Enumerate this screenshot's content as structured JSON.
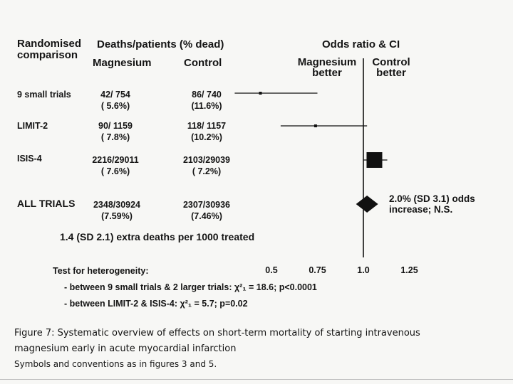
{
  "header": {
    "col_comparison": "Randomised comparison",
    "col_deaths": "Deaths/patients (% dead)",
    "col_magnesium": "Magnesium",
    "col_control": "Control",
    "col_or": "Odds ratio & CI",
    "favour_left": "Magnesium better",
    "favour_right": "Control better"
  },
  "rows": [
    {
      "name": "9 small trials",
      "mg": "42/ 754",
      "mg_pct": "( 5.6%)",
      "ctl": "86/ 740",
      "ctl_pct": "(11.6%)"
    },
    {
      "name": "LIMIT-2",
      "mg": "90/ 1159",
      "mg_pct": "( 7.8%)",
      "ctl": "118/ 1157",
      "ctl_pct": "(10.2%)"
    },
    {
      "name": "ISIS-4",
      "mg": "2216/29011",
      "mg_pct": "( 7.6%)",
      "ctl": "2103/29039",
      "ctl_pct": "( 7.2%)"
    },
    {
      "name": "ALL TRIALS",
      "mg": "2348/30924",
      "mg_pct": "(7.59%)",
      "ctl": "2307/30936",
      "ctl_pct": "(7.46%)"
    }
  ],
  "summary_note": "2.0% (SD 3.1) odds increase; N.S.",
  "extra_deaths": "1.4 (SD 2.1) extra deaths per 1000 treated",
  "heterogeneity": {
    "title": "Test for heterogeneity:",
    "line1": "- between 9 small trials & 2 larger trials: χ²₁ = 18.6; p<0.0001",
    "line2": "- between LIMIT-2 & ISIS-4: χ²₁ = 5.7; p=0.02"
  },
  "caption": {
    "line1": "Figure 7: Systematic overview of effects on short-term mortality of starting intravenous",
    "line2": "magnesium early in acute myocardial infarction",
    "line3": "Symbols and conventions as in figures 3 and 5."
  },
  "chart_data": {
    "type": "forest",
    "title": "Odds ratio & CI",
    "xlim": [
      0.35,
      1.4
    ],
    "ticks": [
      0.5,
      0.75,
      1.0,
      1.25
    ],
    "tick_labels": [
      "0.5",
      "0.75",
      "1.0",
      "1.25"
    ],
    "reference_line": 1.0,
    "studies": [
      {
        "name": "9 small trials",
        "or": 0.44,
        "lo": 0.3,
        "hi": 0.75,
        "weight": "small"
      },
      {
        "name": "LIMIT-2",
        "or": 0.74,
        "lo": 0.55,
        "hi": 1.02,
        "weight": "small"
      },
      {
        "name": "ISIS-4",
        "or": 1.06,
        "lo": 1.0,
        "hi": 1.13,
        "weight": "large"
      }
    ],
    "pooled": {
      "name": "ALL TRIALS",
      "or": 1.02,
      "lo": 0.96,
      "hi": 1.08
    }
  }
}
